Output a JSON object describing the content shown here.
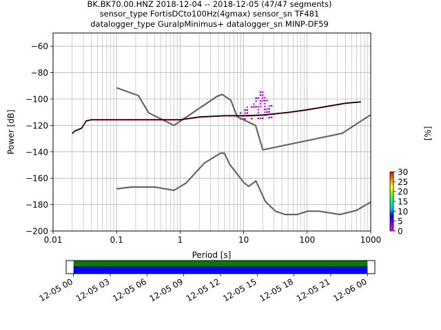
{
  "title_lines": [
    "BK.BK70.00.HNZ   2018-12-04 -- 2018-12-05  (47/47 segments)",
    "sensor_type FortisDCto100Hz(4gmax) sensor_sn TF481",
    "datalogger_type GuralpMinimus+ datalogger_sn MINP-DF59"
  ],
  "colors": {
    "noise_model": "#666666",
    "mean_curve": "#000000",
    "mode_curve": "#8b0000",
    "coverage_data": "#0000ff",
    "coverage_gaps": "#008000",
    "psd_cmap": [
      "#ff00ff",
      "#7f00ff",
      "#0000ff",
      "#00bfff",
      "#00ff7f",
      "#7fff00",
      "#ffff00",
      "#ff7f00",
      "#ff0000"
    ]
  },
  "chart_data": [
    {
      "type": "heatmap",
      "title": "",
      "xlabel": "Period [s]",
      "ylabel": "Power [dB]",
      "xscale": "log",
      "xlim": [
        0.01,
        1000
      ],
      "ylim": [
        -200,
        -50
      ],
      "x_ticks": [
        {
          "value": 0.01,
          "label": "0.01"
        },
        {
          "value": 0.1,
          "label": "0.1"
        },
        {
          "value": 1,
          "label": "1"
        },
        {
          "value": 10,
          "label": "10"
        },
        {
          "value": 100,
          "label": "100"
        },
        {
          "value": 1000,
          "label": "1000"
        }
      ],
      "y_ticks": [
        {
          "value": -60,
          "label": "−60"
        },
        {
          "value": -80,
          "label": "−80"
        },
        {
          "value": -100,
          "label": "−100"
        },
        {
          "value": -120,
          "label": "−120"
        },
        {
          "value": -140,
          "label": "−140"
        },
        {
          "value": -160,
          "label": "−160"
        },
        {
          "value": -180,
          "label": "−180"
        },
        {
          "value": -200,
          "label": "−200"
        }
      ],
      "grid": true,
      "colorbar": {
        "label": "[%]",
        "range": [
          0,
          30
        ],
        "ticks": [
          {
            "value": 0,
            "label": "0"
          },
          {
            "value": 5,
            "label": "5"
          },
          {
            "value": 10,
            "label": "10"
          },
          {
            "value": 15,
            "label": "15"
          },
          {
            "value": 20,
            "label": "20"
          },
          {
            "value": 25,
            "label": "25"
          },
          {
            "value": 30,
            "label": "30"
          }
        ]
      },
      "series": [
        {
          "kind": "noise_model_high",
          "x": [
            0.1,
            0.22,
            0.32,
            0.8,
            3.8,
            4.6,
            6.3,
            7.9,
            15.4,
            20,
            354.8,
            1000
          ],
          "y": [
            -91.5,
            -97.4,
            -110.5,
            -120,
            -98,
            -96.5,
            -101,
            -113.5,
            -120,
            -138.5,
            -126,
            -112
          ]
        },
        {
          "kind": "noise_model_low",
          "x": [
            0.1,
            0.17,
            0.4,
            0.8,
            1.24,
            2.4,
            4.3,
            5,
            6,
            10,
            12,
            15.6,
            21.9,
            31.6,
            45,
            70,
            101,
            154,
            328,
            600,
            1000
          ],
          "y": [
            -168,
            -166.7,
            -166.7,
            -169.2,
            -163.7,
            -148.6,
            -141.1,
            -141.1,
            -149.3,
            -163.2,
            -166.2,
            -162.1,
            -177.5,
            -185,
            -187.5,
            -187.5,
            -185,
            -185,
            -187.5,
            -184.4,
            -178
          ]
        },
        {
          "kind": "mean_psd",
          "x": [
            0.02,
            0.022,
            0.025,
            0.028,
            0.03,
            0.033,
            0.04,
            0.1,
            1,
            2,
            5,
            10,
            20,
            50,
            100,
            200,
            400,
            700
          ],
          "y": [
            -126,
            -124,
            -123,
            -122,
            -120,
            -116.5,
            -115.5,
            -115.5,
            -115.5,
            -113.5,
            -112.5,
            -112.5,
            -112,
            -110,
            -108,
            -105.5,
            -103,
            -102
          ]
        },
        {
          "kind": "psd_histogram_range",
          "x": [
            0.5,
            1,
            2,
            5,
            10,
            20,
            50,
            100,
            200,
            400,
            700
          ],
          "y_min": [
            -116,
            -116,
            -115,
            -115,
            -115,
            -114,
            -112,
            -110,
            -108,
            -106,
            -106
          ],
          "y_max": [
            -113,
            -113,
            -110,
            -106,
            -104,
            -100,
            -104,
            -104,
            -103,
            -100,
            -99
          ]
        },
        {
          "kind": "psd_spike",
          "x": [
            8,
            12,
            16,
            18,
            20,
            24,
            30
          ],
          "y_top": [
            -110,
            -103,
            -97,
            -93,
            -94,
            -101,
            -108
          ]
        }
      ]
    },
    {
      "type": "bar",
      "title": "",
      "xlabel": "",
      "ylabel": "",
      "x_ticks": [
        "12-05 00",
        "12-05 03",
        "12-05 06",
        "12-05 09",
        "12-05 12",
        "12-05 15",
        "12-05 18",
        "12-05 21",
        "12-06 00"
      ],
      "x_range_hours": [
        -0.6,
        24.6
      ],
      "coverage_hours": [
        0,
        24
      ]
    }
  ]
}
